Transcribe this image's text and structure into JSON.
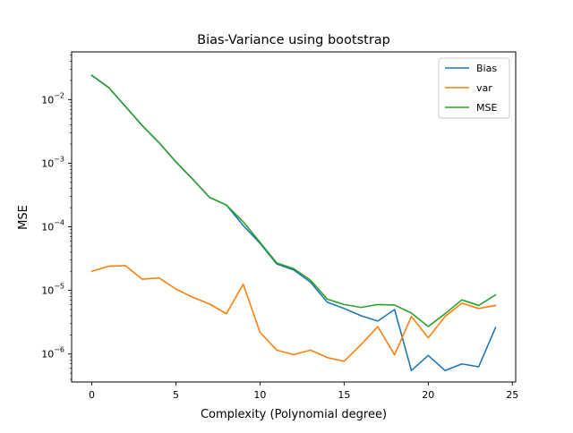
{
  "chart_data": {
    "type": "line",
    "title": "Bias-Variance using bootstrap",
    "xlabel": "Complexity (Polynomial degree)",
    "ylabel": "MSE",
    "yscale": "log",
    "xlim": [
      -1.2,
      25.2
    ],
    "ylim_log10": [
      -6.44,
      -1.25
    ],
    "x_ticks": [
      0,
      5,
      10,
      15,
      20,
      25
    ],
    "x_tick_labels": [
      "0",
      "5",
      "10",
      "15",
      "20",
      "25"
    ],
    "y_ticks_log10": [
      -6,
      -5,
      -4,
      -3,
      -2
    ],
    "y_tick_labels": [
      {
        "base": "10",
        "exp": "−6"
      },
      {
        "base": "10",
        "exp": "−5"
      },
      {
        "base": "10",
        "exp": "−4"
      },
      {
        "base": "10",
        "exp": "−3"
      },
      {
        "base": "10",
        "exp": "−2"
      }
    ],
    "grid": false,
    "legend_position": "top-right",
    "x": [
      0,
      1,
      2,
      3,
      4,
      5,
      6,
      7,
      8,
      9,
      10,
      11,
      12,
      13,
      14,
      15,
      16,
      17,
      18,
      19,
      20,
      21,
      22,
      23,
      24
    ],
    "series": [
      {
        "name": "Bias",
        "color": "#1f77b4",
        "values": [
          0.024,
          0.0155,
          0.0078,
          0.0039,
          0.0021,
          0.00105,
          0.00056,
          0.00029,
          0.00022,
          0.000105,
          5.5e-05,
          2.6e-05,
          2.1e-05,
          1.35e-05,
          6.5e-06,
          5.2e-06,
          4e-06,
          3.3e-06,
          5e-06,
          5.5e-07,
          9.5e-07,
          5.5e-07,
          7e-07,
          6.3e-07,
          2.6e-06
        ]
      },
      {
        "name": "var",
        "color": "#ff7f0e",
        "values": [
          2e-05,
          2.4e-05,
          2.45e-05,
          1.5e-05,
          1.57e-05,
          1.05e-05,
          7.8e-06,
          6.1e-06,
          4.3e-06,
          1.25e-05,
          2.2e-06,
          1.15e-06,
          9.8e-07,
          1.15e-06,
          8.8e-07,
          7.7e-07,
          1.4e-06,
          2.7e-06,
          9.7e-07,
          3.9e-06,
          1.8e-06,
          3.9e-06,
          6.3e-06,
          5.2e-06,
          5.8e-06
        ]
      },
      {
        "name": "MSE",
        "color": "#2ca02c",
        "values": [
          0.024,
          0.0155,
          0.0078,
          0.0039,
          0.0021,
          0.00105,
          0.00056,
          0.00029,
          0.00022,
          0.00012,
          5.7e-05,
          2.7e-05,
          2.2e-05,
          1.45e-05,
          7.3e-06,
          6e-06,
          5.4e-06,
          6e-06,
          5.9e-06,
          4.4e-06,
          2.7e-06,
          4.3e-06,
          7.1e-06,
          5.8e-06,
          8.5e-06
        ]
      }
    ]
  }
}
